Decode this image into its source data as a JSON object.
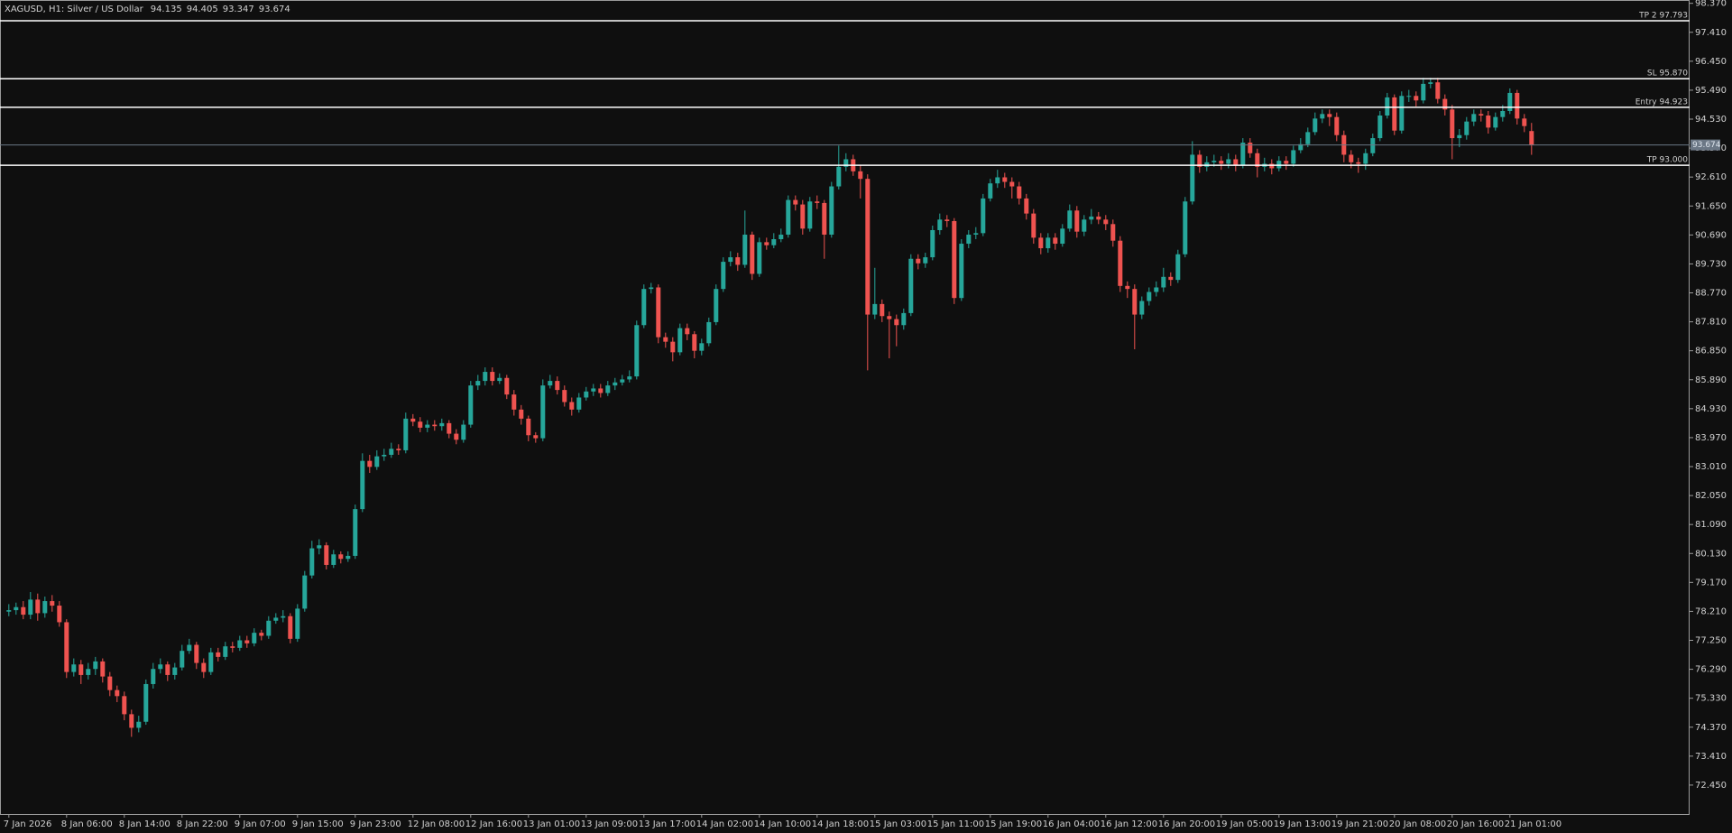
{
  "chart_data": {
    "type": "candlestick",
    "title": "XAGUSD, H1:  Silver / US Dollar",
    "up_color": "#26a69a",
    "down_color": "#ef5350",
    "level_color": "#ffffff",
    "price_line_color": "#6b7785",
    "ylim": [
      71.49,
      98.48
    ],
    "yticks": [
      {
        "value": 98.37,
        "label": "98.370"
      },
      {
        "value": 97.41,
        "label": "97.410"
      },
      {
        "value": 96.45,
        "label": "96.450"
      },
      {
        "value": 95.49,
        "label": "95.490"
      },
      {
        "value": 94.53,
        "label": "94.530"
      },
      {
        "value": 93.57,
        "label": "93.570"
      },
      {
        "value": 92.61,
        "label": "92.610"
      },
      {
        "value": 91.65,
        "label": "91.650"
      },
      {
        "value": 90.69,
        "label": "90.690"
      },
      {
        "value": 89.73,
        "label": "89.730"
      },
      {
        "value": 88.77,
        "label": "88.770"
      },
      {
        "value": 87.81,
        "label": "87.810"
      },
      {
        "value": 86.85,
        "label": "86.850"
      },
      {
        "value": 85.89,
        "label": "85.890"
      },
      {
        "value": 84.93,
        "label": "84.930"
      },
      {
        "value": 83.97,
        "label": "83.970"
      },
      {
        "value": 83.01,
        "label": "83.010"
      },
      {
        "value": 82.05,
        "label": "82.050"
      },
      {
        "value": 81.09,
        "label": "81.090"
      },
      {
        "value": 80.13,
        "label": "80.130"
      },
      {
        "value": 79.17,
        "label": "79.170"
      },
      {
        "value": 78.21,
        "label": "78.210"
      },
      {
        "value": 77.25,
        "label": "77.250"
      },
      {
        "value": 76.29,
        "label": "76.290"
      },
      {
        "value": 75.33,
        "label": "75.330"
      },
      {
        "value": 74.37,
        "label": "74.370"
      },
      {
        "value": 73.41,
        "label": "73.410"
      },
      {
        "value": 72.45,
        "label": "72.450"
      }
    ],
    "levels": [
      {
        "label": "TP 2 97.793",
        "value": 97.793
      },
      {
        "label": "SL 95.870",
        "value": 95.87
      },
      {
        "label": "Entry 94.923",
        "value": 94.923
      },
      {
        "label": "TP 93.000",
        "value": 93
      }
    ],
    "categories": [
      "7 Jan 2026",
      null,
      null,
      null,
      null,
      null,
      null,
      null,
      "8 Jan 06:00",
      null,
      null,
      null,
      null,
      null,
      null,
      null,
      "8 Jan 14:00",
      null,
      null,
      null,
      null,
      null,
      null,
      null,
      "8 Jan 22:00",
      null,
      null,
      null,
      null,
      null,
      null,
      null,
      "9 Jan 07:00",
      null,
      null,
      null,
      null,
      null,
      null,
      null,
      "9 Jan 15:00",
      null,
      null,
      null,
      null,
      null,
      null,
      null,
      "9 Jan 23:00",
      null,
      null,
      null,
      null,
      null,
      null,
      null,
      "12 Jan 08:00",
      null,
      null,
      null,
      null,
      null,
      null,
      null,
      "12 Jan 16:00",
      null,
      null,
      null,
      null,
      null,
      null,
      null,
      "13 Jan 01:00",
      null,
      null,
      null,
      null,
      null,
      null,
      null,
      "13 Jan 09:00",
      null,
      null,
      null,
      null,
      null,
      null,
      null,
      "13 Jan 17:00",
      null,
      null,
      null,
      null,
      null,
      null,
      null,
      "14 Jan 02:00",
      null,
      null,
      null,
      null,
      null,
      null,
      null,
      "14 Jan 10:00",
      null,
      null,
      null,
      null,
      null,
      null,
      null,
      "14 Jan 18:00",
      null,
      null,
      null,
      null,
      null,
      null,
      null,
      "15 Jan 03:00",
      null,
      null,
      null,
      null,
      null,
      null,
      null,
      "15 Jan 11:00",
      null,
      null,
      null,
      null,
      null,
      null,
      null,
      "15 Jan 19:00",
      null,
      null,
      null,
      null,
      null,
      null,
      null,
      "16 Jan 04:00",
      null,
      null,
      null,
      null,
      null,
      null,
      null,
      "16 Jan 12:00",
      null,
      null,
      null,
      null,
      null,
      null,
      null,
      "16 Jan 20:00",
      null,
      null,
      null,
      null,
      null,
      null,
      null,
      "19 Jan 05:00",
      null,
      null,
      null,
      null,
      null,
      null,
      null,
      "19 Jan 13:00",
      null,
      null,
      null,
      null,
      null,
      null,
      null,
      "19 Jan 21:00",
      null,
      null,
      null,
      null,
      null,
      null,
      null,
      "20 Jan 08:00",
      null,
      null,
      null,
      null,
      null,
      null,
      null,
      "20 Jan 16:00",
      null,
      null,
      null,
      null,
      null,
      null,
      null,
      "21 Jan 01:00",
      null,
      null,
      null
    ],
    "open": [
      78.2,
      78.25,
      78.35,
      78.1,
      78.6,
      78.15,
      78.55,
      78.4,
      77.85,
      76.2,
      76.45,
      76.1,
      76.3,
      76.55,
      76.05,
      75.6,
      75.4,
      74.8,
      74.35,
      74.55,
      75.8,
      76.3,
      76.45,
      76.1,
      76.35,
      76.9,
      77.1,
      76.5,
      76.2,
      76.85,
      76.7,
      77.05,
      77.0,
      77.25,
      77.15,
      77.5,
      77.4,
      77.9,
      78.0,
      78.05,
      77.3,
      78.3,
      79.4,
      80.3,
      80.4,
      79.75,
      80.1,
      79.95,
      80.05,
      81.6,
      83.2,
      83.0,
      83.35,
      83.4,
      83.6,
      83.55,
      84.6,
      84.5,
      84.3,
      84.4,
      84.35,
      84.45,
      84.1,
      83.9,
      84.4,
      85.7,
      85.85,
      86.15,
      85.85,
      85.95,
      85.4,
      84.9,
      84.6,
      84.05,
      83.95,
      85.7,
      85.85,
      85.55,
      85.15,
      84.9,
      85.3,
      85.5,
      85.6,
      85.45,
      85.7,
      85.8,
      85.9,
      86.0,
      87.7,
      88.9,
      88.95,
      87.3,
      87.15,
      86.8,
      87.6,
      87.4,
      86.85,
      87.1,
      87.8,
      88.9,
      89.8,
      89.95,
      89.7,
      90.7,
      89.4,
      90.45,
      90.35,
      90.55,
      90.7,
      91.85,
      91.7,
      90.9,
      91.8,
      91.75,
      90.7,
      92.3,
      92.95,
      93.2,
      92.8,
      92.55,
      88.05,
      88.4,
      88.0,
      87.9,
      87.7,
      88.1,
      89.9,
      89.75,
      89.95,
      90.85,
      91.2,
      91.15,
      88.6,
      90.4,
      90.7,
      90.75,
      91.9,
      92.4,
      92.6,
      92.45,
      92.3,
      91.9,
      91.4,
      90.6,
      90.25,
      90.6,
      90.4,
      90.9,
      91.5,
      90.8,
      91.2,
      91.3,
      91.2,
      91.05,
      90.5,
      89.0,
      88.9,
      88.05,
      88.5,
      88.8,
      88.95,
      89.3,
      89.2,
      90.05,
      91.8,
      93.35,
      92.95,
      93.1,
      93.15,
      93.05,
      93.2,
      93.0,
      93.75,
      93.4,
      92.95,
      93.05,
      92.9,
      93.15,
      93.05,
      93.5,
      93.7,
      94.1,
      94.55,
      94.7,
      94.6,
      94.0,
      93.35,
      93.1,
      93.05,
      93.4,
      93.9,
      94.65,
      95.25,
      94.15,
      95.3,
      95.3,
      95.15,
      95.7,
      95.75,
      95.2,
      94.85,
      93.9,
      94.0,
      94.45,
      94.7,
      94.65,
      94.25,
      94.6,
      94.8,
      95.4,
      94.55,
      94.135
    ],
    "high": [
      78.45,
      78.5,
      78.55,
      78.85,
      78.8,
      78.7,
      78.75,
      78.55,
      77.95,
      76.65,
      76.6,
      76.5,
      76.7,
      76.65,
      76.2,
      75.75,
      75.55,
      74.95,
      74.75,
      75.95,
      76.5,
      76.65,
      76.55,
      76.5,
      77.1,
      77.3,
      77.2,
      76.65,
      77.0,
      77.0,
      77.2,
      77.2,
      77.4,
      77.4,
      77.65,
      77.6,
      78.05,
      78.15,
      78.25,
      78.15,
      78.45,
      79.55,
      80.55,
      80.6,
      80.5,
      80.25,
      80.2,
      80.2,
      81.75,
      83.45,
      83.4,
      83.55,
      83.6,
      83.8,
      83.75,
      84.8,
      84.75,
      84.65,
      84.55,
      84.55,
      84.6,
      84.55,
      84.25,
      84.55,
      85.85,
      86.05,
      86.3,
      86.3,
      86.1,
      86.05,
      85.55,
      85.05,
      84.7,
      84.15,
      85.9,
      86.05,
      86.0,
      85.7,
      85.3,
      85.45,
      85.65,
      85.75,
      85.75,
      85.85,
      85.95,
      86.05,
      86.2,
      87.85,
      89.05,
      89.1,
      89.05,
      87.45,
      87.3,
      87.75,
      87.75,
      87.5,
      87.25,
      87.95,
      89.05,
      89.95,
      90.15,
      90.1,
      91.5,
      90.8,
      90.6,
      90.6,
      90.75,
      90.9,
      92.0,
      92.0,
      91.85,
      91.95,
      92.0,
      91.85,
      92.45,
      93.65,
      93.4,
      93.35,
      93.0,
      92.7,
      89.6,
      88.55,
      88.15,
      88.05,
      88.25,
      90.05,
      90.05,
      90.1,
      91.0,
      91.4,
      91.35,
      91.25,
      90.55,
      90.85,
      90.95,
      92.05,
      92.55,
      92.85,
      92.75,
      92.6,
      92.45,
      92.05,
      91.55,
      90.75,
      90.75,
      90.75,
      91.05,
      91.7,
      91.65,
      91.35,
      91.55,
      91.45,
      91.35,
      91.2,
      90.65,
      89.15,
      89.05,
      88.65,
      88.95,
      89.15,
      89.6,
      89.45,
      90.2,
      91.95,
      93.8,
      93.5,
      93.3,
      93.35,
      93.3,
      93.4,
      93.35,
      93.9,
      93.9,
      93.55,
      93.25,
      93.2,
      93.3,
      93.3,
      93.65,
      93.9,
      94.25,
      94.75,
      94.85,
      94.85,
      94.75,
      94.15,
      93.5,
      93.25,
      93.55,
      94.05,
      94.8,
      95.4,
      95.35,
      95.45,
      95.5,
      95.45,
      95.9,
      95.9,
      95.9,
      95.35,
      95.0,
      94.2,
      94.6,
      94.85,
      94.85,
      94.8,
      94.75,
      95.0,
      95.55,
      95.5,
      94.7,
      94.405
    ],
    "low": [
      78.05,
      78.1,
      77.95,
      77.95,
      77.9,
      78.0,
      78.2,
      77.7,
      76.0,
      76.05,
      75.8,
      75.95,
      76.1,
      75.85,
      75.4,
      75.2,
      74.6,
      74.05,
      74.2,
      74.45,
      75.65,
      76.15,
      75.9,
      75.95,
      76.25,
      76.8,
      76.3,
      76.0,
      76.1,
      76.55,
      76.6,
      76.85,
      76.9,
      77.0,
      77.05,
      77.25,
      77.3,
      77.8,
      77.85,
      77.15,
      77.2,
      78.2,
      79.3,
      80.1,
      79.6,
      79.65,
      79.8,
      79.85,
      79.95,
      81.5,
      82.8,
      82.9,
      83.2,
      83.3,
      83.4,
      83.45,
      84.35,
      84.15,
      84.15,
      84.2,
      84.2,
      83.95,
      83.75,
      83.8,
      84.3,
      85.55,
      85.7,
      85.7,
      85.75,
      85.25,
      84.7,
      84.4,
      83.85,
      83.8,
      83.85,
      85.6,
      85.4,
      85.0,
      84.7,
      84.8,
      85.2,
      85.35,
      85.3,
      85.35,
      85.55,
      85.7,
      85.8,
      85.9,
      87.6,
      88.75,
      87.1,
      86.95,
      86.5,
      86.7,
      87.2,
      86.6,
      86.7,
      87.0,
      87.7,
      88.8,
      89.65,
      89.5,
      89.6,
      89.2,
      89.3,
      90.2,
      90.25,
      90.45,
      90.6,
      91.5,
      90.7,
      90.8,
      91.55,
      89.9,
      90.6,
      92.2,
      92.8,
      92.65,
      91.9,
      86.2,
      87.9,
      87.8,
      86.6,
      87.0,
      87.55,
      88.0,
      89.55,
      89.6,
      89.85,
      90.7,
      90.95,
      88.4,
      88.5,
      90.25,
      90.55,
      90.65,
      91.8,
      92.25,
      92.25,
      91.9,
      91.7,
      91.2,
      90.4,
      90.05,
      90.1,
      90.2,
      90.3,
      90.8,
      90.6,
      90.65,
      91.05,
      91.05,
      90.85,
      90.3,
      88.8,
      88.6,
      86.9,
      87.9,
      88.35,
      88.65,
      88.8,
      89.0,
      89.1,
      89.95,
      91.7,
      92.75,
      92.8,
      92.95,
      92.85,
      92.9,
      92.8,
      92.9,
      93.25,
      92.6,
      92.8,
      92.7,
      92.8,
      92.85,
      92.95,
      93.4,
      93.6,
      94.0,
      94.4,
      94.3,
      93.8,
      93.1,
      92.9,
      92.75,
      92.85,
      93.3,
      93.8,
      94.55,
      94.0,
      94.05,
      95.1,
      94.95,
      95.05,
      95.55,
      95.05,
      94.65,
      93.2,
      93.6,
      93.85,
      94.3,
      94.45,
      94.05,
      94.15,
      94.45,
      94.7,
      94.35,
      94.1,
      93.347
    ],
    "close": [
      78.25,
      78.35,
      78.1,
      78.6,
      78.15,
      78.55,
      78.4,
      77.85,
      76.2,
      76.45,
      76.1,
      76.3,
      76.55,
      76.05,
      75.6,
      75.4,
      74.8,
      74.35,
      74.55,
      75.8,
      76.3,
      76.45,
      76.1,
      76.35,
      76.9,
      77.1,
      76.5,
      76.2,
      76.85,
      76.7,
      77.05,
      77.0,
      77.25,
      77.15,
      77.5,
      77.4,
      77.9,
      78.0,
      78.05,
      77.3,
      78.3,
      79.4,
      80.3,
      80.4,
      79.75,
      80.1,
      79.95,
      80.05,
      81.6,
      83.2,
      83.0,
      83.35,
      83.4,
      83.6,
      83.55,
      84.6,
      84.5,
      84.3,
      84.4,
      84.35,
      84.45,
      84.1,
      83.9,
      84.4,
      85.7,
      85.85,
      86.15,
      85.85,
      85.95,
      85.4,
      84.9,
      84.6,
      84.05,
      83.95,
      85.7,
      85.85,
      85.55,
      85.15,
      84.9,
      85.3,
      85.5,
      85.6,
      85.45,
      85.7,
      85.8,
      85.9,
      86.0,
      87.7,
      88.9,
      88.95,
      87.3,
      87.15,
      86.8,
      87.6,
      87.4,
      86.85,
      87.1,
      87.8,
      88.9,
      89.8,
      89.95,
      89.7,
      90.7,
      89.4,
      90.45,
      90.35,
      90.55,
      90.7,
      91.85,
      91.7,
      90.9,
      91.8,
      91.75,
      90.7,
      92.3,
      92.95,
      93.2,
      92.8,
      92.55,
      88.05,
      88.4,
      88.0,
      87.9,
      87.7,
      88.1,
      89.9,
      89.75,
      89.95,
      90.85,
      91.2,
      91.15,
      88.6,
      90.4,
      90.7,
      90.75,
      91.9,
      92.4,
      92.6,
      92.45,
      92.3,
      91.9,
      91.4,
      90.6,
      90.25,
      90.6,
      90.4,
      90.9,
      91.5,
      90.8,
      91.2,
      91.3,
      91.2,
      91.05,
      90.5,
      89.0,
      88.9,
      88.05,
      88.5,
      88.8,
      88.95,
      89.3,
      89.2,
      90.05,
      91.8,
      93.35,
      92.95,
      93.1,
      93.15,
      93.05,
      93.2,
      93.0,
      93.75,
      93.4,
      92.95,
      93.05,
      92.9,
      93.15,
      93.05,
      93.5,
      93.7,
      94.1,
      94.55,
      94.7,
      94.6,
      94.0,
      93.35,
      93.1,
      93.05,
      93.4,
      93.9,
      94.65,
      95.25,
      94.15,
      95.3,
      95.3,
      95.15,
      95.7,
      95.75,
      95.2,
      94.85,
      93.9,
      94.0,
      94.45,
      94.7,
      94.65,
      94.25,
      94.6,
      94.8,
      95.4,
      94.55,
      94.3,
      93.674
    ]
  }
}
